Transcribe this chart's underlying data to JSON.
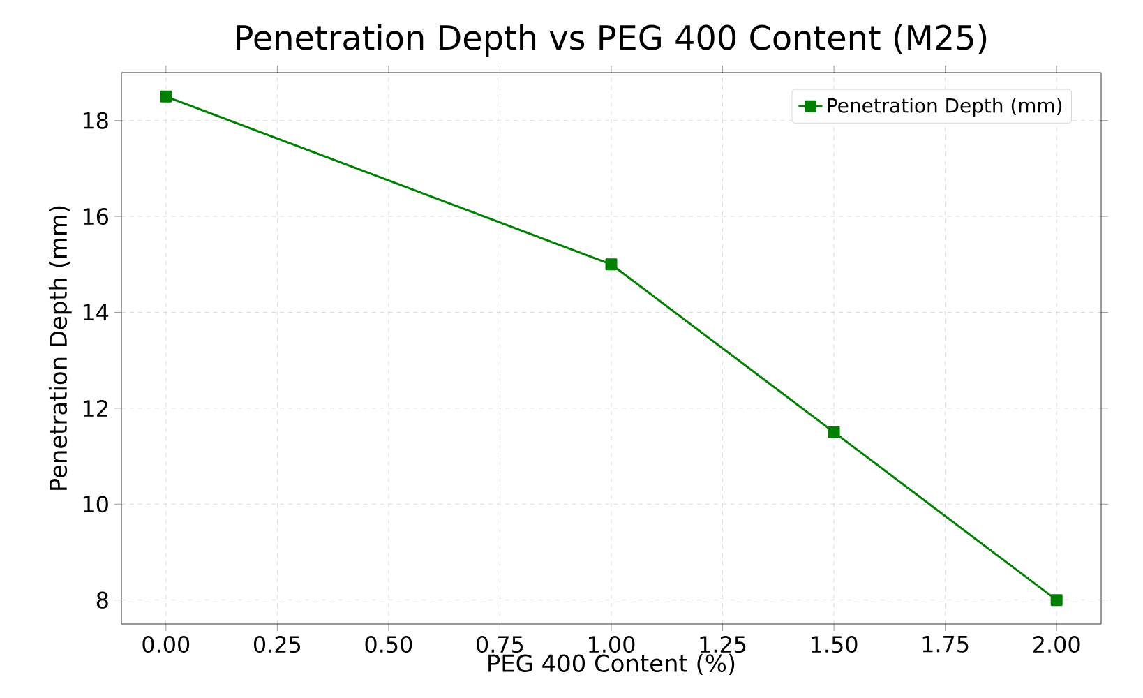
{
  "chart_data": {
    "type": "line",
    "title": "Penetration Depth vs PEG 400 Content (M25)",
    "xlabel": "PEG 400 Content (%)",
    "ylabel": "Penetration Depth (mm)",
    "x": [
      0,
      1,
      1.5,
      2
    ],
    "series": [
      {
        "name": "Penetration Depth (mm)",
        "color": "#008000",
        "values": [
          18.5,
          15,
          11.5,
          8
        ]
      }
    ],
    "xlim": [
      -0.1,
      2.1
    ],
    "ylim": [
      7.5,
      19
    ],
    "xticks": [
      {
        "value": 0,
        "label": "0.00"
      },
      {
        "value": 0.25,
        "label": "0.25"
      },
      {
        "value": 0.5,
        "label": "0.50"
      },
      {
        "value": 0.75,
        "label": "0.75"
      },
      {
        "value": 1,
        "label": "1.00"
      },
      {
        "value": 1.25,
        "label": "1.25"
      },
      {
        "value": 1.5,
        "label": "1.50"
      },
      {
        "value": 1.75,
        "label": "1.75"
      },
      {
        "value": 2,
        "label": "2.00"
      }
    ],
    "yticks": [
      8,
      10,
      12,
      14,
      16,
      18
    ],
    "grid": true,
    "legend": "top right",
    "marker": "square",
    "line_style": "solid"
  }
}
